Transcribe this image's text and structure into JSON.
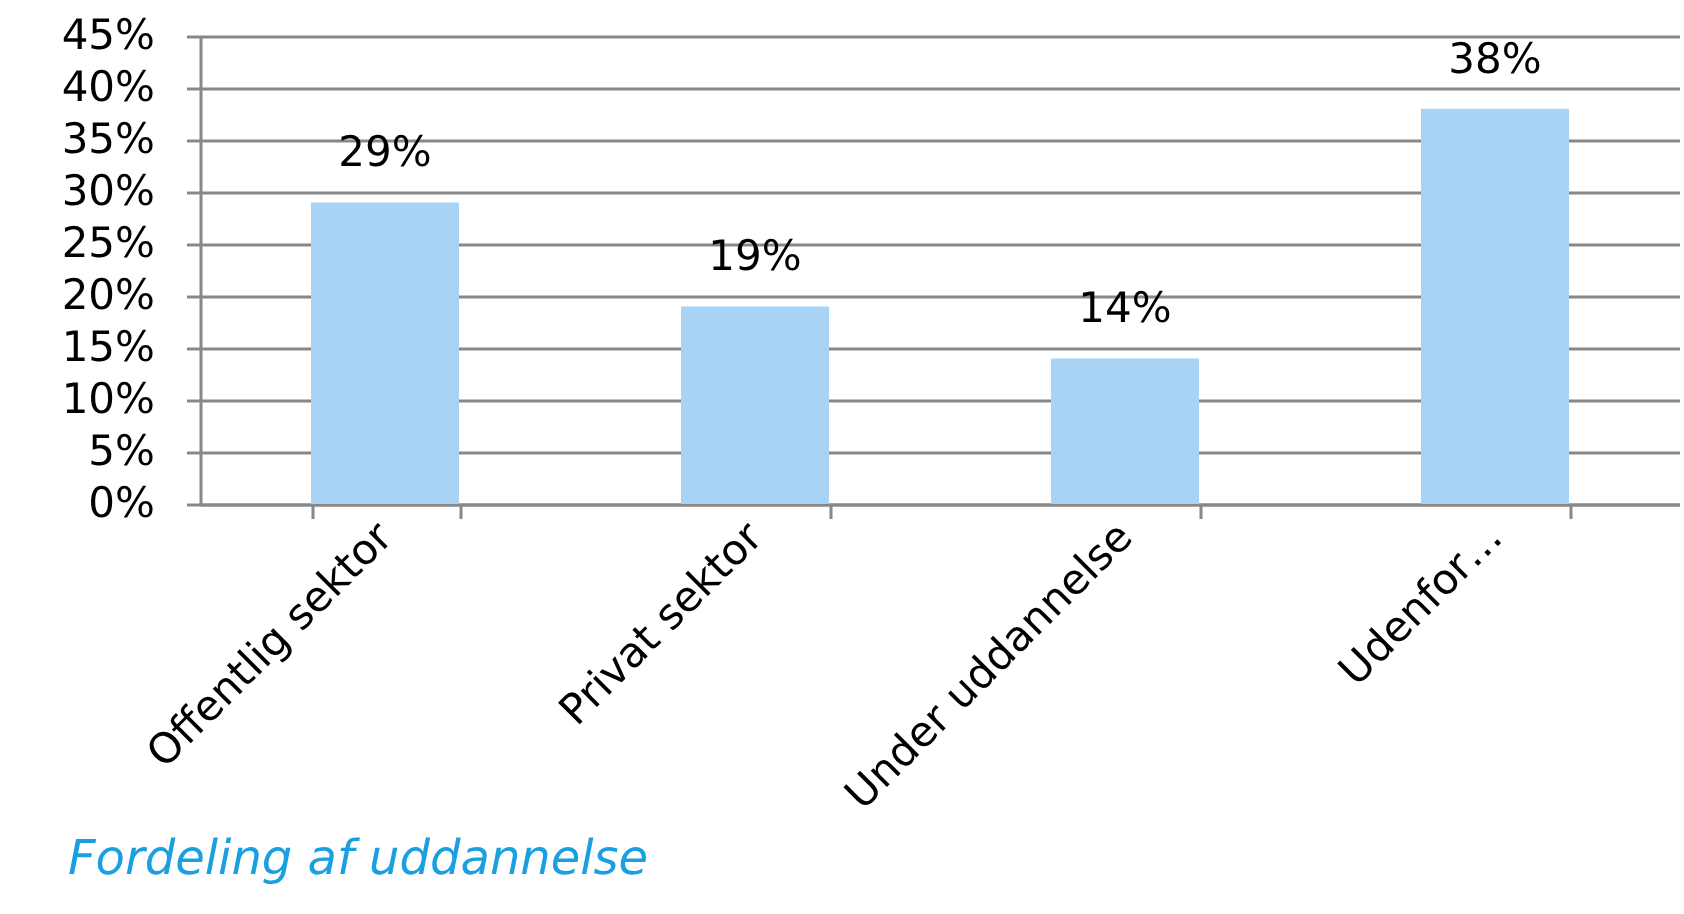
{
  "chart_data": {
    "type": "bar",
    "categories": [
      "Offentlig sektor",
      "Privat sektor",
      "Under uddannelse",
      "Udenfor…"
    ],
    "values": [
      29,
      19,
      14,
      38
    ],
    "value_labels": [
      "29%",
      "19%",
      "14%",
      "38%"
    ],
    "color": "#a9d3f5",
    "ylim": [
      0,
      45
    ],
    "yticks": [
      {
        "value": 0,
        "label": "0%"
      },
      {
        "value": 5,
        "label": "5%"
      },
      {
        "value": 10,
        "label": "10%"
      },
      {
        "value": 15,
        "label": "15%"
      },
      {
        "value": 20,
        "label": "20%"
      },
      {
        "value": 25,
        "label": "25%"
      },
      {
        "value": 30,
        "label": "30%"
      },
      {
        "value": 35,
        "label": "35%"
      },
      {
        "value": 40,
        "label": "40%"
      },
      {
        "value": 45,
        "label": "45%"
      }
    ],
    "grid": "y",
    "annotations": [
      "Fordeling af uddannelse"
    ]
  }
}
